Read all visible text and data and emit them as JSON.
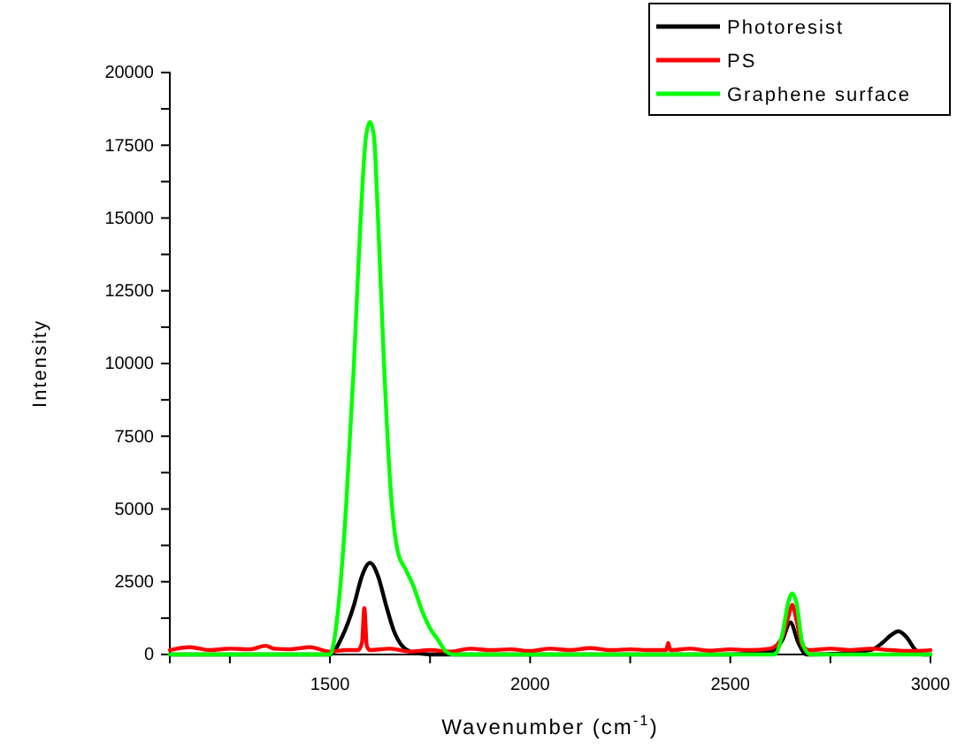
{
  "chart_data": {
    "type": "line",
    "xlabel": "Wavenumber (cm$^{-1}$)",
    "ylabel": "Intensity",
    "xlim": [
      1100,
      3000
    ],
    "ylim": [
      0,
      20000
    ],
    "xticks": [
      {
        "value": 1250,
        "label": null
      },
      1500,
      {
        "value": 1750,
        "label": null
      },
      2000,
      {
        "value": 2250,
        "label": null
      },
      2500,
      {
        "value": 2750,
        "label": null
      },
      3000
    ],
    "yticks": [
      0,
      {
        "value": 1250,
        "label": null
      },
      2500,
      {
        "value": 3750,
        "label": null
      },
      5000,
      {
        "value": 6250,
        "label": null
      },
      7500,
      {
        "value": 8750,
        "label": null
      },
      10000,
      {
        "value": 11250,
        "label": null
      },
      12500,
      {
        "value": 13750,
        "label": null
      },
      15000,
      {
        "value": 16250,
        "label": null
      },
      17500,
      {
        "value": 18750,
        "label": null
      },
      20000
    ],
    "grid": false,
    "legend": "top right",
    "line_style": "solid",
    "marker": "none",
    "series": [
      {
        "name": "Photoresist",
        "color": "#000000",
        "x": [
          1100,
          1400,
          1500,
          1530,
          1560,
          1580,
          1600,
          1620,
          1640,
          1660,
          1680,
          1700,
          1750,
          2000,
          2500,
          2600,
          2630,
          2650,
          2670,
          2690,
          2700,
          2850,
          2880,
          2900,
          2920,
          2940,
          2960,
          2980,
          3000
        ],
        "values": [
          0,
          0,
          0,
          600,
          1700,
          2700,
          3150,
          2700,
          1700,
          800,
          300,
          100,
          0,
          0,
          0,
          100,
          500,
          1100,
          400,
          0,
          0,
          150,
          400,
          650,
          800,
          600,
          200,
          0,
          0
        ]
      },
      {
        "name": "PS",
        "color": "#ff0000",
        "x": [
          1100,
          1150,
          1200,
          1250,
          1300,
          1340,
          1360,
          1400,
          1450,
          1500,
          1540,
          1570,
          1580,
          1586,
          1592,
          1600,
          1650,
          1700,
          1750,
          1800,
          1850,
          1900,
          1950,
          2000,
          2050,
          2100,
          2150,
          2200,
          2250,
          2300,
          2340,
          2345,
          2350,
          2400,
          2450,
          2500,
          2550,
          2600,
          2630,
          2645,
          2655,
          2665,
          2680,
          2700,
          2750,
          2800,
          2850,
          2900,
          2950,
          3000
        ],
        "values": [
          150,
          250,
          150,
          200,
          180,
          300,
          200,
          180,
          250,
          100,
          150,
          150,
          400,
          1600,
          300,
          150,
          200,
          100,
          150,
          100,
          200,
          150,
          180,
          120,
          200,
          150,
          220,
          150,
          180,
          150,
          150,
          400,
          150,
          200,
          130,
          180,
          150,
          200,
          600,
          1300,
          1700,
          1200,
          300,
          150,
          200,
          150,
          200,
          150,
          120,
          150
        ]
      },
      {
        "name": "Graphene surface",
        "color": "#00ff00",
        "x": [
          1100,
          1490,
          1500,
          1520,
          1540,
          1560,
          1575,
          1590,
          1600,
          1610,
          1620,
          1635,
          1650,
          1670,
          1690,
          1710,
          1730,
          1750,
          1770,
          1790,
          1810,
          1830,
          2000,
          2500,
          2610,
          2630,
          2645,
          2655,
          2665,
          2680,
          2700,
          3000
        ],
        "values": [
          0,
          0,
          0,
          1500,
          5000,
          10000,
          14500,
          17800,
          18300,
          17800,
          15000,
          10000,
          6000,
          3500,
          2900,
          2300,
          1500,
          900,
          500,
          100,
          0,
          0,
          0,
          0,
          0,
          700,
          1800,
          2100,
          1800,
          400,
          0,
          0
        ]
      }
    ]
  }
}
